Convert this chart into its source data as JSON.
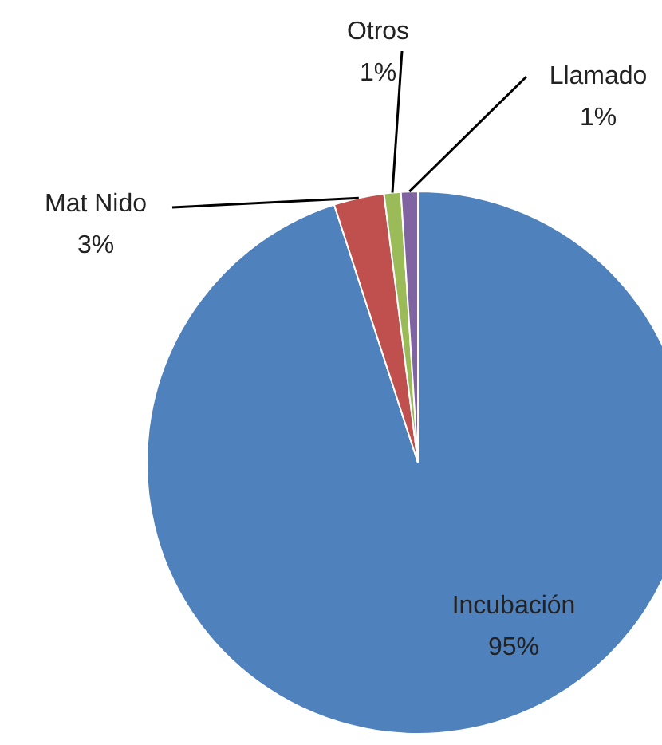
{
  "chart_data": {
    "type": "pie",
    "categories": [
      "Incubación",
      "Mat Nido",
      "Otros",
      "Llamado"
    ],
    "values": [
      95,
      3,
      1,
      1
    ],
    "colors": [
      "#4f81bd",
      "#c0504d",
      "#9bbb59",
      "#8064a2"
    ],
    "value_labels": [
      "95%",
      "3%",
      "1%",
      "1%"
    ],
    "legend": false
  }
}
